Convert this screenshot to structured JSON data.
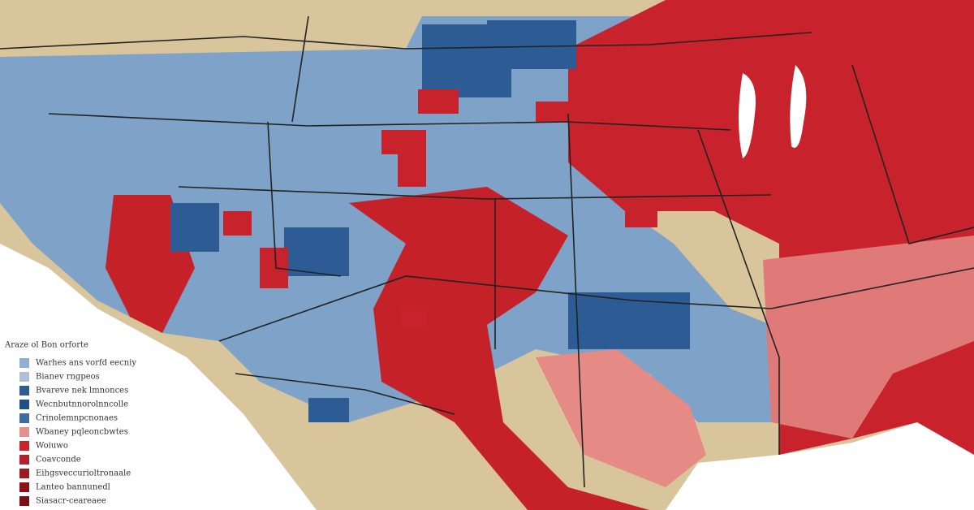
{
  "legend": {
    "title": "Araze ol Bon orforte",
    "items": [
      {
        "label": "Warhes ans vorfd eecniy",
        "color": "#8fb0d4"
      },
      {
        "label": "Bianev rngpeos",
        "color": "#aebfd6"
      },
      {
        "label": "Bvareve nek lmnonces",
        "color": "#2d5c95"
      },
      {
        "label": "Wecnbutnnorolnncolle",
        "color": "#1f4e88"
      },
      {
        "label": "Crinolemnpcnonaes",
        "color": "#3f6da3"
      },
      {
        "label": "Wbaney pqleoncbwtes",
        "color": "#e3918a"
      },
      {
        "label": "Woiuwo",
        "color": "#c8232c"
      },
      {
        "label": "Coavconde",
        "color": "#b3202a"
      },
      {
        "label": "Eihgsveccurioltronaale",
        "color": "#9b1b22"
      },
      {
        "label": "Lanteo bannunedl",
        "color": "#8a1218"
      },
      {
        "label": "Siasacr-ceareaee",
        "color": "#7a0f14"
      }
    ]
  }
}
